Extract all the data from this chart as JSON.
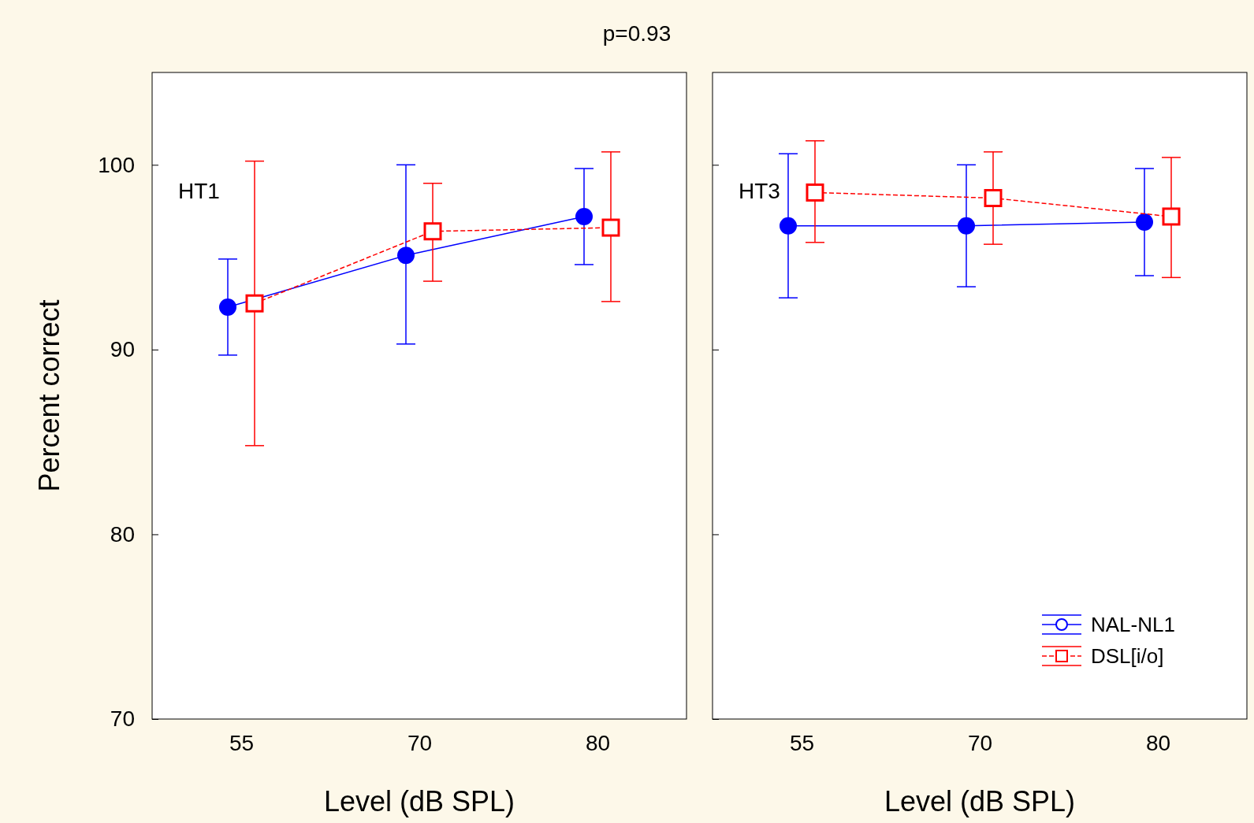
{
  "chart_data": [
    {
      "type": "line",
      "title": "p=0.93",
      "categories": [
        "55",
        "70",
        "80"
      ],
      "xlabel": "Level (dB SPL)",
      "ylabel": "Percent correct",
      "ylim": [
        70,
        105
      ],
      "yticks": [
        70,
        80,
        90,
        100
      ],
      "annotations": [
        "HT1"
      ],
      "legend": false,
      "grid": false,
      "series": [
        {
          "color": "#0000ff",
          "marker": "circle",
          "line_style": "solid",
          "values": [
            92.3,
            95.1,
            97.2
          ],
          "errors": [
            [
              89.7,
              94.9
            ],
            [
              90.3,
              100
            ],
            [
              94.6,
              99.8
            ]
          ]
        },
        {
          "color": "#ff0000",
          "marker": "square",
          "line_style": "dashed",
          "values": [
            92.5,
            96.4,
            96.6
          ],
          "errors": [
            [
              84.8,
              100.2
            ],
            [
              93.7,
              99
            ],
            [
              92.6,
              100.7
            ]
          ]
        }
      ]
    },
    {
      "type": "line",
      "categories": [
        "55",
        "70",
        "80"
      ],
      "xlabel": "Level (dB SPL)",
      "ylim": [
        70,
        105
      ],
      "yticks": [
        70,
        80,
        90,
        100
      ],
      "tick_labels": "x",
      "annotations": [
        "HT3"
      ],
      "legend": "bottom right",
      "grid": false,
      "series": [
        {
          "name": "NAL-NL1",
          "color": "#0000ff",
          "marker": "circle",
          "line_style": "solid",
          "values": [
            96.7,
            96.7,
            96.9
          ],
          "errors": [
            [
              92.8,
              100.6
            ],
            [
              93.4,
              100
            ],
            [
              94,
              99.8
            ]
          ]
        },
        {
          "name": "DSL[i/o]",
          "color": "#ff0000",
          "marker": "square",
          "line_style": "dashed",
          "values": [
            98.5,
            98.2,
            97.2
          ],
          "errors": [
            [
              95.8,
              101.3
            ],
            [
              95.7,
              100.7
            ],
            [
              93.9,
              100.4
            ]
          ]
        }
      ]
    }
  ]
}
